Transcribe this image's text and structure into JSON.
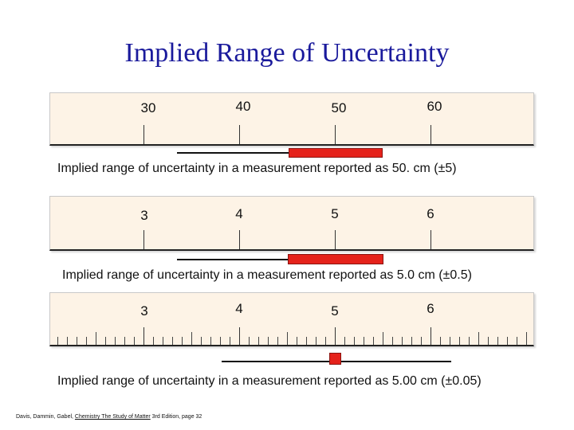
{
  "title": "Implied Range of Uncertainty",
  "panels": [
    {
      "labels": [
        "30",
        "40",
        "50",
        "60"
      ],
      "minor_ticks": false,
      "caption": "Implied range of uncertainty in a measurement reported as 50. cm (±5)"
    },
    {
      "labels": [
        "3",
        "4",
        "5",
        "6"
      ],
      "minor_ticks": false,
      "caption": "Implied range of uncertainty in a measurement reported as 5.0 cm (±0.5)"
    },
    {
      "labels": [
        "3",
        "4",
        "5",
        "6"
      ],
      "minor_ticks": true,
      "caption": "Implied range of uncertainty in a measurement reported as 5.00 cm (±0.05)"
    }
  ],
  "credit": {
    "authors": "Davis, Dammin, Gabel, ",
    "book": "Chemistry The Study of Matter",
    "edition": " 3rd Edition, page 32"
  },
  "colors": {
    "title": "#1a1a9c",
    "range_box": "#e5221b",
    "ruler": "#fdf3e6"
  }
}
